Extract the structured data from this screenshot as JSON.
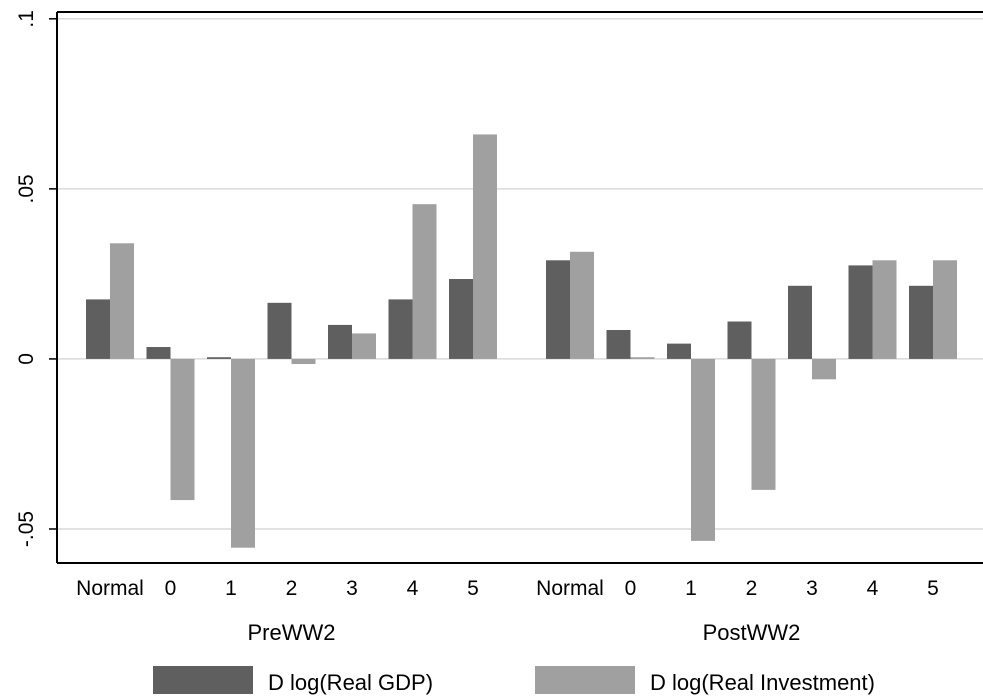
{
  "chart_data": {
    "type": "bar",
    "title": "",
    "xlabel": "",
    "ylabel": "",
    "ylim": [
      -0.06,
      0.102
    ],
    "y_ticks": [
      -0.05,
      0,
      0.05,
      0.1
    ],
    "y_tick_labels": [
      "-.05",
      "0",
      ".05",
      ".1"
    ],
    "grid": "horizontal",
    "legend_position": "bottom",
    "groups": [
      {
        "name": "PreWW2",
        "categories": [
          "Normal",
          "0",
          "1",
          "2",
          "3",
          "4",
          "5"
        ]
      },
      {
        "name": "PostWW2",
        "categories": [
          "Normal",
          "0",
          "1",
          "2",
          "3",
          "4",
          "5"
        ]
      }
    ],
    "series": [
      {
        "name": "D log(Real GDP)",
        "color": "#5f5f5f",
        "values": [
          0.0175,
          0.0035,
          0.0005,
          0.0165,
          0.01,
          0.0175,
          0.0235,
          0.029,
          0.0085,
          0.0045,
          0.011,
          0.0215,
          0.0275,
          0.0215
        ]
      },
      {
        "name": "D log(Real Investment)",
        "color": "#a0a0a0",
        "values": [
          0.034,
          -0.0415,
          -0.0555,
          -0.0015,
          0.0075,
          0.0455,
          0.066,
          0.0315,
          0.0005,
          -0.0535,
          -0.0385,
          -0.006,
          0.029,
          0.029
        ]
      }
    ]
  }
}
